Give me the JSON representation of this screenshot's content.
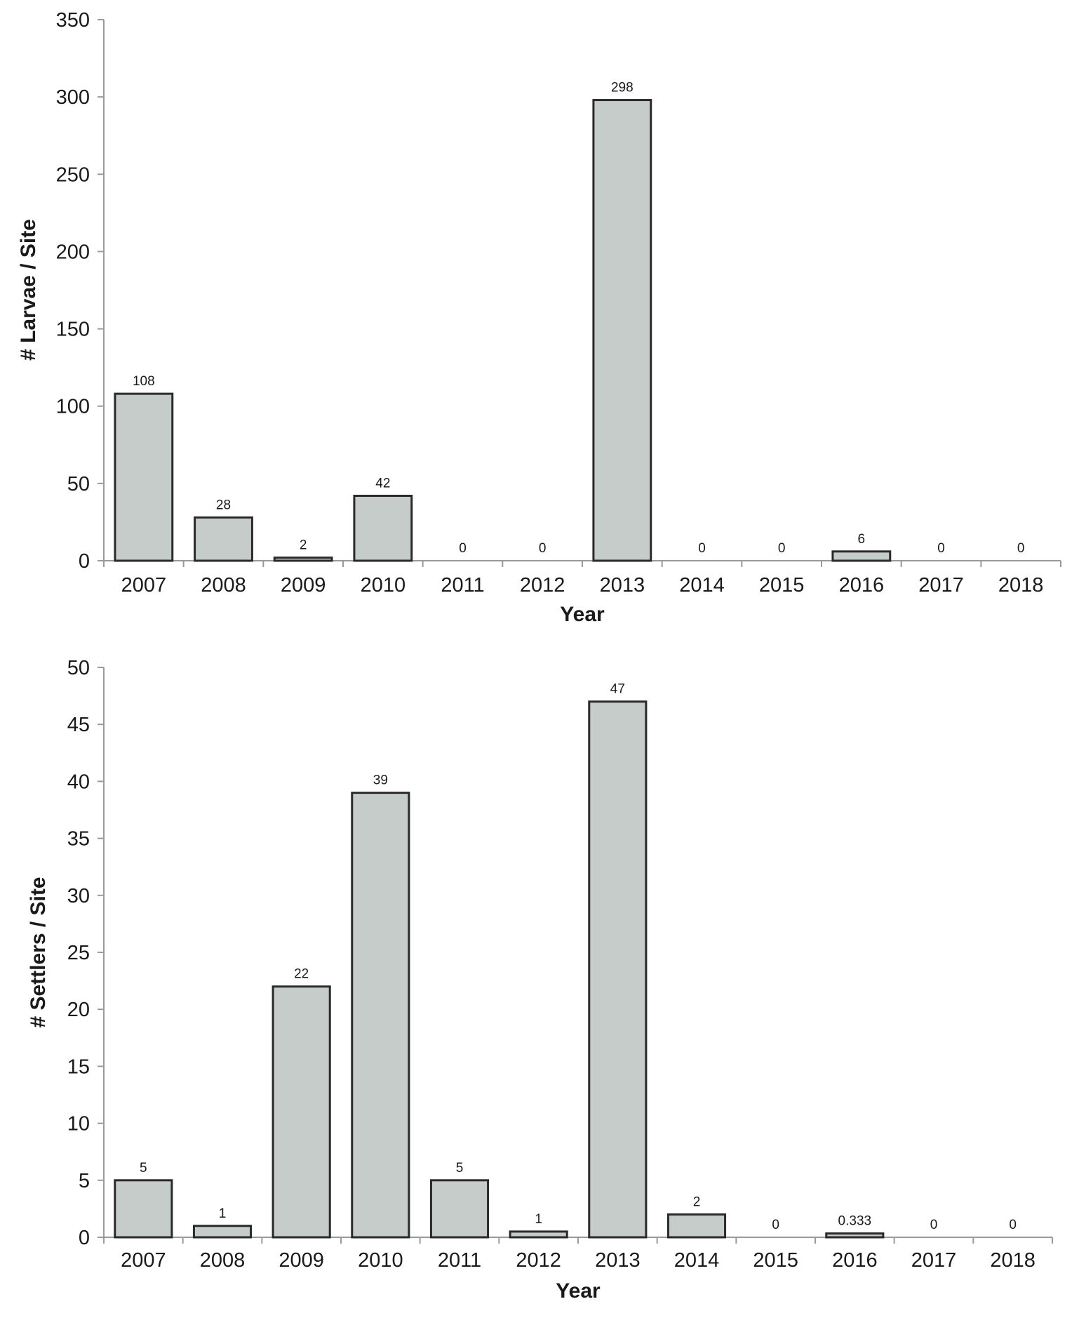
{
  "chart_data": [
    {
      "type": "bar",
      "categories": [
        "2007",
        "2008",
        "2009",
        "2010",
        "2011",
        "2012",
        "2013",
        "2014",
        "2015",
        "2016",
        "2017",
        "2018"
      ],
      "values": [
        108,
        28,
        2,
        42,
        0,
        0,
        298,
        0,
        0,
        6,
        0,
        0
      ],
      "data_labels": [
        "108",
        "28",
        "2",
        "42",
        "0",
        "0",
        "298",
        "0",
        "0",
        "6",
        "0",
        "0"
      ],
      "xlabel": "Year",
      "ylabel": "# Larvae / Site",
      "ylim": [
        0,
        350
      ],
      "yticks": [
        0,
        50,
        100,
        150,
        200,
        250,
        300,
        350
      ],
      "grid": false
    },
    {
      "type": "bar",
      "categories": [
        "2007",
        "2008",
        "2009",
        "2010",
        "2011",
        "2012",
        "2013",
        "2014",
        "2015",
        "2016",
        "2017",
        "2018"
      ],
      "values": [
        5,
        1,
        22,
        39,
        5,
        0.5,
        47,
        2,
        0,
        0.333,
        0,
        0
      ],
      "data_labels": [
        "5",
        "1",
        "22",
        "39",
        "5",
        "1",
        "47",
        "2",
        "0",
        "0.333",
        "0",
        "0"
      ],
      "xlabel": "Year",
      "ylabel": "# Settlers / Site",
      "ylim": [
        0,
        50
      ],
      "yticks": [
        0,
        5,
        10,
        15,
        20,
        25,
        30,
        35,
        40,
        45,
        50
      ],
      "grid": false
    }
  ],
  "colors": {
    "bar_fill": "#c6ccc9",
    "bar_stroke": "#2a2a2a",
    "axis": "#9a9a9a"
  }
}
